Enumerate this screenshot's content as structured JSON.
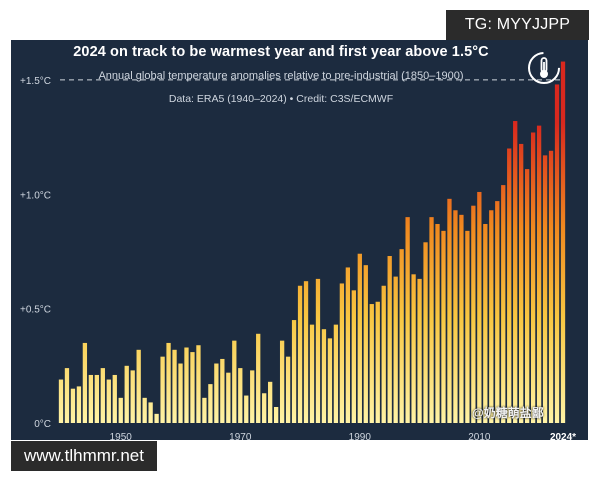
{
  "header": {
    "title": "2024 on track to be warmest year and first year above 1.5°C",
    "subtitle": "Annual global temperature anomalies relative to pre-industrial (1850–1900)",
    "source": "Data: ERA5 (1940–2024) • Credit: C3S/ECMWF",
    "logo_icon": "thermometer-globe-icon"
  },
  "watermarks": {
    "top": "TG: MYYJJPP",
    "bottom": "www.tlhmmr.net",
    "cn": "@奶糖萌盐鄙"
  },
  "colors": {
    "background": "#1c2b3f",
    "bar_low": "#fff3a6",
    "bar_mid": "#f6a623",
    "bar_high": "#d9281e",
    "threshold_line": "#d0d6de"
  },
  "chart_data": {
    "type": "bar",
    "title": "2024 on track to be warmest year and first year above 1.5°C",
    "subtitle": "Annual global temperature anomalies relative to pre-industrial (1850–1900)",
    "ylim": [
      0,
      1.6
    ],
    "y_ticks": [
      0,
      0.5,
      1.0,
      1.5
    ],
    "y_tick_labels": [
      "0°C",
      "+0.5°C",
      "+1.0°C",
      "+1.5°C"
    ],
    "x_tick_labels": [
      "1950",
      "1970",
      "1990",
      "2010",
      "2024*"
    ],
    "x_tick_years": [
      1950,
      1970,
      1990,
      2010,
      2024
    ],
    "threshold": 1.5,
    "grid": false,
    "x": [
      1940,
      1941,
      1942,
      1943,
      1944,
      1945,
      1946,
      1947,
      1948,
      1949,
      1950,
      1951,
      1952,
      1953,
      1954,
      1955,
      1956,
      1957,
      1958,
      1959,
      1960,
      1961,
      1962,
      1963,
      1964,
      1965,
      1966,
      1967,
      1968,
      1969,
      1970,
      1971,
      1972,
      1973,
      1974,
      1975,
      1976,
      1977,
      1978,
      1979,
      1980,
      1981,
      1982,
      1983,
      1984,
      1985,
      1986,
      1987,
      1988,
      1989,
      1990,
      1991,
      1992,
      1993,
      1994,
      1995,
      1996,
      1997,
      1998,
      1999,
      2000,
      2001,
      2002,
      2003,
      2004,
      2005,
      2006,
      2007,
      2008,
      2009,
      2010,
      2011,
      2012,
      2013,
      2014,
      2015,
      2016,
      2017,
      2018,
      2019,
      2020,
      2021,
      2022,
      2023,
      2024
    ],
    "values": [
      0.19,
      0.24,
      0.15,
      0.16,
      0.35,
      0.21,
      0.21,
      0.24,
      0.19,
      0.21,
      0.11,
      0.25,
      0.23,
      0.32,
      0.11,
      0.09,
      0.04,
      0.29,
      0.35,
      0.32,
      0.26,
      0.33,
      0.31,
      0.34,
      0.11,
      0.17,
      0.26,
      0.28,
      0.22,
      0.36,
      0.24,
      0.12,
      0.23,
      0.39,
      0.13,
      0.18,
      0.07,
      0.36,
      0.29,
      0.45,
      0.6,
      0.62,
      0.43,
      0.63,
      0.41,
      0.37,
      0.43,
      0.61,
      0.68,
      0.58,
      0.74,
      0.69,
      0.52,
      0.53,
      0.6,
      0.73,
      0.64,
      0.76,
      0.9,
      0.65,
      0.63,
      0.79,
      0.9,
      0.87,
      0.84,
      0.98,
      0.93,
      0.91,
      0.84,
      0.95,
      1.01,
      0.87,
      0.93,
      0.97,
      1.04,
      1.2,
      1.32,
      1.22,
      1.11,
      1.27,
      1.3,
      1.17,
      1.19,
      1.48,
      1.58
    ]
  }
}
